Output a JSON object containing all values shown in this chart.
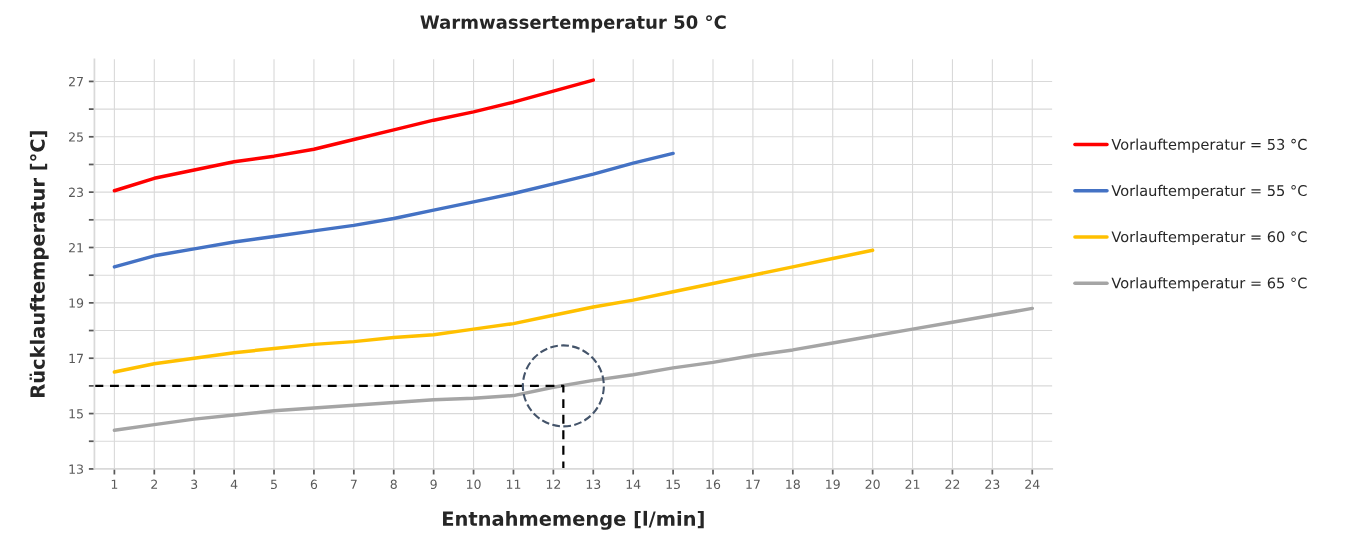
{
  "chart_data": {
    "type": "line",
    "title": "Warmwassertemperatur 50 °C",
    "xlabel": "Entnahmemenge [l/min]",
    "ylabel": "Rücklauftemperatur [°C]",
    "xlim": [
      0.5,
      24.5
    ],
    "xticks": [
      1,
      2,
      3,
      4,
      5,
      6,
      7,
      8,
      9,
      10,
      11,
      12,
      13,
      14,
      15,
      16,
      17,
      18,
      19,
      20,
      21,
      22,
      23,
      24
    ],
    "ylim": [
      13,
      27.8
    ],
    "yticks": [
      13,
      {
        "value": 14,
        "label": null
      },
      15,
      {
        "value": 16,
        "label": null
      },
      17,
      {
        "value": 18,
        "label": null
      },
      19,
      {
        "value": 20,
        "label": null
      },
      21,
      {
        "value": 22,
        "label": null
      },
      23,
      {
        "value": 24,
        "label": null
      },
      25,
      {
        "value": 26,
        "label": null
      },
      27
    ],
    "grid": true,
    "legend": "right",
    "line_style": "solid",
    "marker": "none",
    "series": [
      {
        "name": "Vorlauftemperatur = 53 °C",
        "color": "#ff0000",
        "x": [
          1,
          2,
          3,
          4,
          5,
          6,
          7,
          8,
          9,
          10,
          11,
          12,
          13
        ],
        "values": [
          23.05,
          23.5,
          23.8,
          24.1,
          24.3,
          24.55,
          24.9,
          25.25,
          25.6,
          25.9,
          26.25,
          26.65,
          27.05
        ]
      },
      {
        "name": "Vorlauftemperatur = 55 °C",
        "color": "#4472c4",
        "x": [
          1,
          2,
          3,
          4,
          5,
          6,
          7,
          8,
          9,
          10,
          11,
          12,
          13,
          14,
          15
        ],
        "values": [
          20.3,
          20.7,
          20.95,
          21.2,
          21.4,
          21.6,
          21.8,
          22.05,
          22.35,
          22.65,
          22.95,
          23.3,
          23.65,
          24.05,
          24.4
        ]
      },
      {
        "name": "Vorlauftemperatur = 60 °C",
        "color": "#ffc000",
        "x": [
          1,
          2,
          3,
          4,
          5,
          6,
          7,
          8,
          9,
          10,
          11,
          12,
          13,
          14,
          15,
          16,
          17,
          18,
          19,
          20
        ],
        "values": [
          16.5,
          16.8,
          17.0,
          17.2,
          17.35,
          17.5,
          17.6,
          17.75,
          17.85,
          18.05,
          18.25,
          18.55,
          18.85,
          19.1,
          19.4,
          19.7,
          20.0,
          20.3,
          20.6,
          20.9
        ]
      },
      {
        "name": "Vorlauftemperatur = 65 °C",
        "color": "#a5a5a5",
        "x": [
          1,
          2,
          3,
          4,
          5,
          6,
          7,
          8,
          9,
          10,
          11,
          12,
          13,
          14,
          15,
          16,
          17,
          18,
          19,
          20,
          21,
          22,
          23,
          24
        ],
        "values": [
          14.4,
          14.6,
          14.8,
          14.95,
          15.1,
          15.2,
          15.3,
          15.4,
          15.5,
          15.55,
          15.65,
          15.95,
          16.2,
          16.4,
          16.65,
          16.85,
          17.1,
          17.3,
          17.55,
          17.8,
          18.05,
          18.3,
          18.55,
          18.8
        ]
      },
      {
        "type": "line",
        "color": "#000000",
        "line_style": "dashed",
        "x": [
          0.5,
          12.25,
          12.25
        ],
        "values": [
          16,
          16,
          13
        ]
      },
      {
        "type": "scatter",
        "color": "#44546a",
        "marker": "circle",
        "x": [
          12.25
        ],
        "values": [
          16
        ]
      }
    ]
  }
}
